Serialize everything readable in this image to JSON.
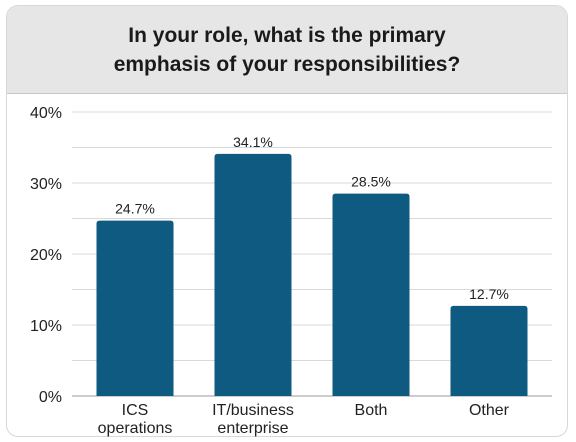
{
  "title": "In your role, what is the primary\nemphasis of your responsibilities?",
  "colors": {
    "bar": "#0f5a80",
    "header_bg": "#e6e6e6",
    "gridline": "#d9d9d9",
    "axis": "#9a9a9a"
  },
  "chart_data": {
    "type": "bar",
    "title": "In your role, what is the primary emphasis of your responsibilities?",
    "categories": [
      "ICS\noperations",
      "IT/business\nenterprise",
      "Both",
      "Other"
    ],
    "values": [
      24.7,
      34.1,
      28.5,
      12.7
    ],
    "value_labels": [
      "24.7%",
      "34.1%",
      "28.5%",
      "12.7%"
    ],
    "ylim": [
      0,
      40
    ],
    "yticks": [
      "0%",
      "10%",
      "20%",
      "30%",
      "40%"
    ],
    "grid": true,
    "xlabel": "",
    "ylabel": ""
  }
}
